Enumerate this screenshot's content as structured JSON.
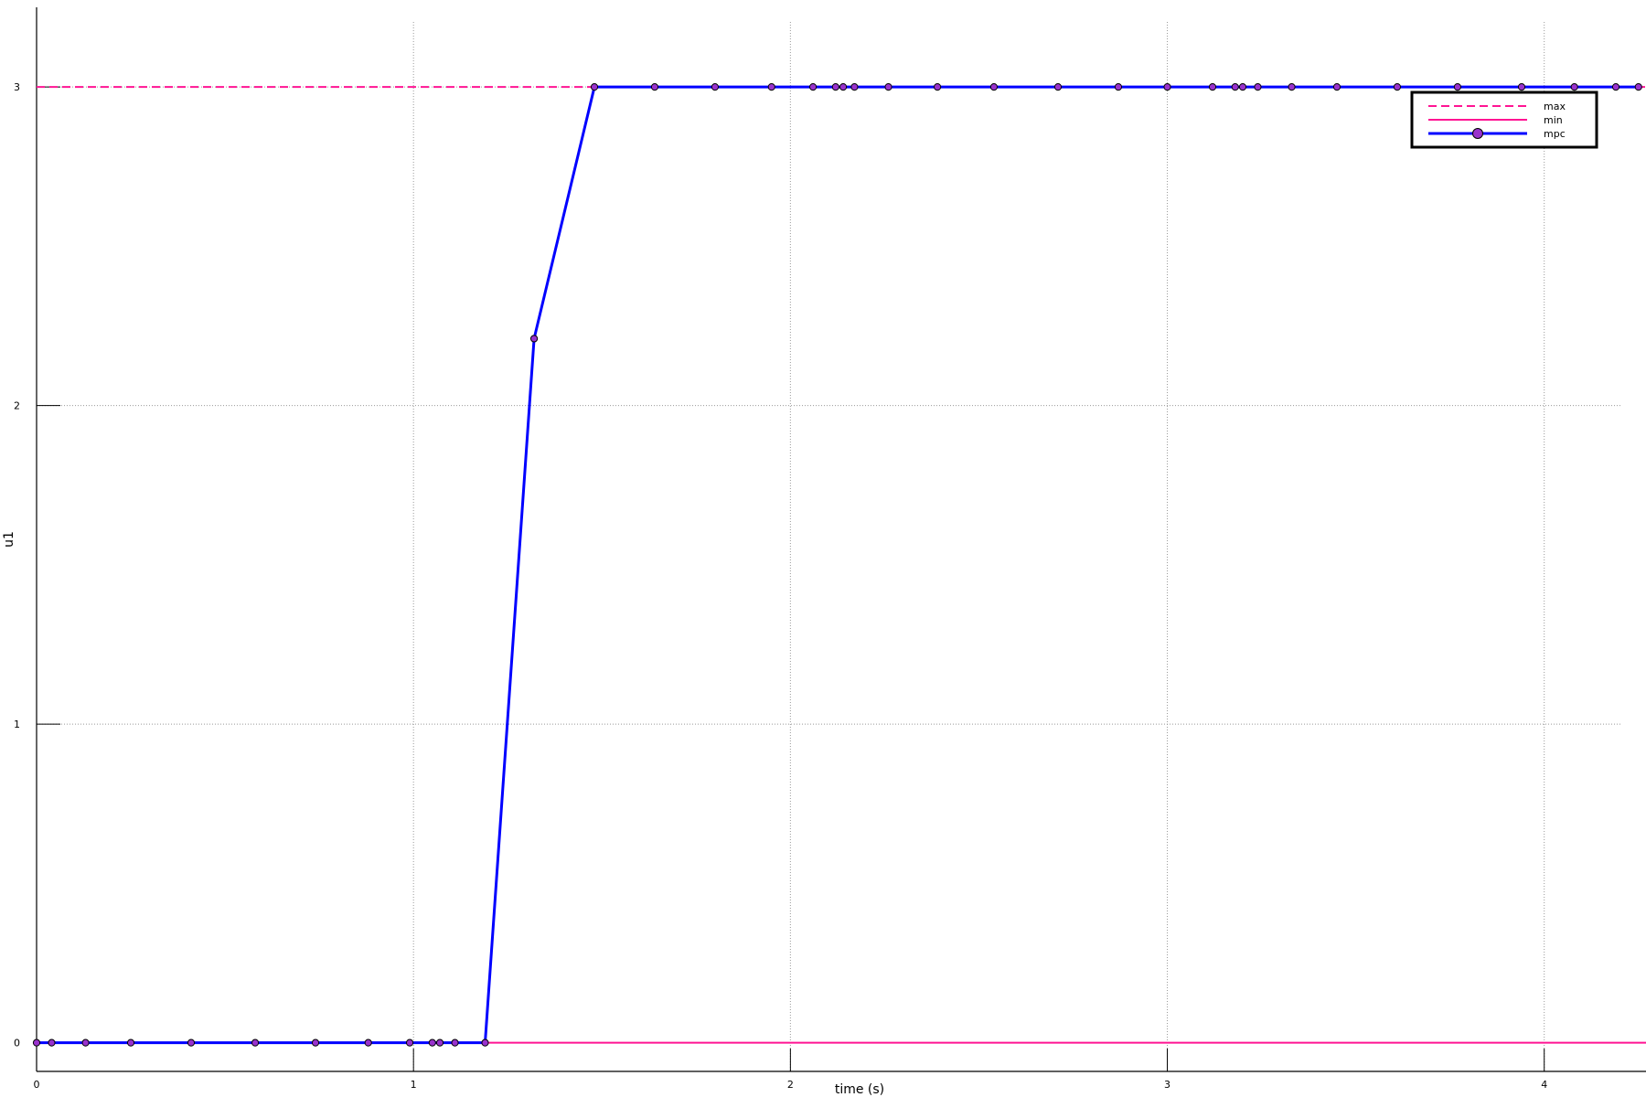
{
  "chart_data": {
    "type": "line",
    "xlabel": "time (s)",
    "ylabel": "u1",
    "xlim": [
      0,
      4.27
    ],
    "ylim": [
      -0.09,
      3.25
    ],
    "x_ticks": [
      0,
      1,
      2,
      3,
      4
    ],
    "y_ticks": [
      0,
      1,
      2,
      3
    ],
    "grid": true,
    "legend_position": "top-right",
    "series": [
      {
        "name": "max",
        "style": "dashed",
        "color": "#ff1493",
        "constant": 3
      },
      {
        "name": "min",
        "style": "solid",
        "color": "#ff1493",
        "constant": 0
      },
      {
        "name": "mpc",
        "style": "solid-markers",
        "color": "#0000ff",
        "marker_color": "#9932cc",
        "x": [
          0,
          0.04,
          0.13,
          0.25,
          0.41,
          0.58,
          0.74,
          0.88,
          0.99,
          1.05,
          1.07,
          1.11,
          1.19,
          1.32,
          1.48,
          1.64,
          1.8,
          1.95,
          2.06,
          2.12,
          2.14,
          2.17,
          2.26,
          2.39,
          2.54,
          2.71,
          2.87,
          3.0,
          3.12,
          3.18,
          3.2,
          3.24,
          3.33,
          3.45,
          3.61,
          3.77,
          3.94,
          4.08,
          4.19,
          4.25
        ],
        "y": [
          0,
          0,
          0,
          0,
          0,
          0,
          0,
          0,
          0,
          0,
          0,
          0,
          0,
          2.21,
          3,
          3,
          3,
          3,
          3,
          3,
          3,
          3,
          3,
          3,
          3,
          3,
          3,
          3,
          3,
          3,
          3,
          3,
          3,
          3,
          3,
          3,
          3,
          3,
          3,
          3
        ]
      }
    ]
  }
}
